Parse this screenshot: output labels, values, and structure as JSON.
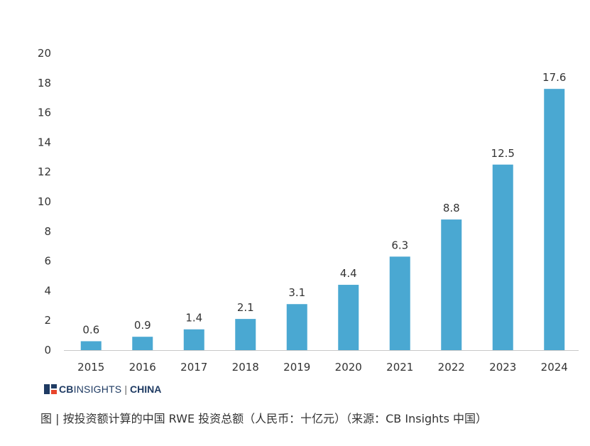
{
  "chart_data": {
    "type": "bar",
    "categories": [
      "2015",
      "2016",
      "2017",
      "2018",
      "2019",
      "2020",
      "2021",
      "2022",
      "2023",
      "2024"
    ],
    "values": [
      0.6,
      0.9,
      1.4,
      2.1,
      3.1,
      4.4,
      6.3,
      8.8,
      12.5,
      17.6
    ],
    "value_labels": [
      "0.6",
      "0.9",
      "1.4",
      "2.1",
      "3.1",
      "4.4",
      "6.3",
      "8.8",
      "12.5",
      "17.6"
    ],
    "yticks": [
      "0",
      "2",
      "4",
      "6",
      "8",
      "10",
      "12",
      "14",
      "16",
      "18",
      "20"
    ],
    "ylim": [
      0,
      20
    ],
    "grid": false,
    "bar_color": "#4aa8d2",
    "axis_color": "#c8c8c8"
  },
  "logo": {
    "brand_bold": "CB",
    "brand_rest": "INSIGHTS",
    "separator": "|",
    "region": "CHINA",
    "mark_colors": [
      "#1f3b63",
      "#e8452c"
    ]
  },
  "caption": "图 | 按投资额计算的中国 RWE 投资总额（人民币：十亿元）（来源：CB Insights 中国）"
}
